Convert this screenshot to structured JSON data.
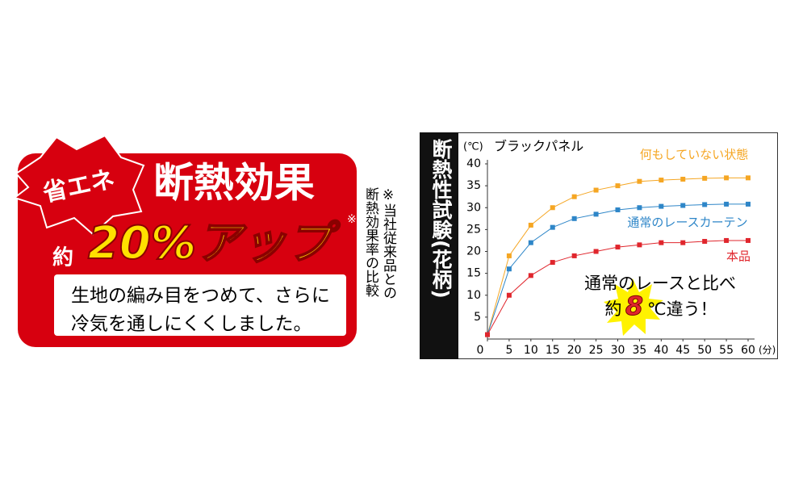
{
  "banner": {
    "badge": "省エネ",
    "heading": "断熱効果",
    "prefix": "約",
    "highlight": "20%アップ",
    "mark": "※",
    "body": [
      "生地の編み目をつめて、さらに",
      "冷気を通しにくくしました。"
    ]
  },
  "note": [
    "※当社従来品との",
    "断熱効果率の比較"
  ],
  "chart_data": {
    "type": "line",
    "side_label": "断熱性試験(花柄)",
    "y_unit": "(℃)",
    "title": "ブラックパネル",
    "x_unit": "(分)",
    "x": [
      0,
      5,
      10,
      15,
      20,
      25,
      30,
      35,
      40,
      45,
      50,
      55,
      60
    ],
    "series": [
      {
        "name": "何もしていない状態",
        "color": "#f5a623",
        "values": [
          1,
          19,
          26,
          30,
          32.5,
          34,
          35,
          36,
          36.3,
          36.5,
          36.7,
          36.8,
          36.8
        ]
      },
      {
        "name": "通常のレースカーテン",
        "color": "#2e86c8",
        "values": [
          1,
          16,
          22,
          25.5,
          27.5,
          28.5,
          29.5,
          30,
          30.3,
          30.5,
          30.7,
          30.8,
          30.8
        ]
      },
      {
        "name": "本品",
        "color": "#e0262d",
        "values": [
          1,
          10,
          14.5,
          17.5,
          19,
          20,
          21,
          21.5,
          22,
          22,
          22.3,
          22.5,
          22.5
        ]
      }
    ],
    "xlim": [
      0,
      60
    ],
    "ylim": [
      0,
      40
    ],
    "xticks": [
      0,
      5,
      10,
      15,
      20,
      25,
      30,
      35,
      40,
      45,
      50,
      55,
      60
    ],
    "yticks": [
      5,
      10,
      15,
      20,
      25,
      30,
      35,
      40
    ],
    "annotation": [
      "通常のレースと比べ",
      "約",
      "8",
      "℃違う！"
    ]
  }
}
